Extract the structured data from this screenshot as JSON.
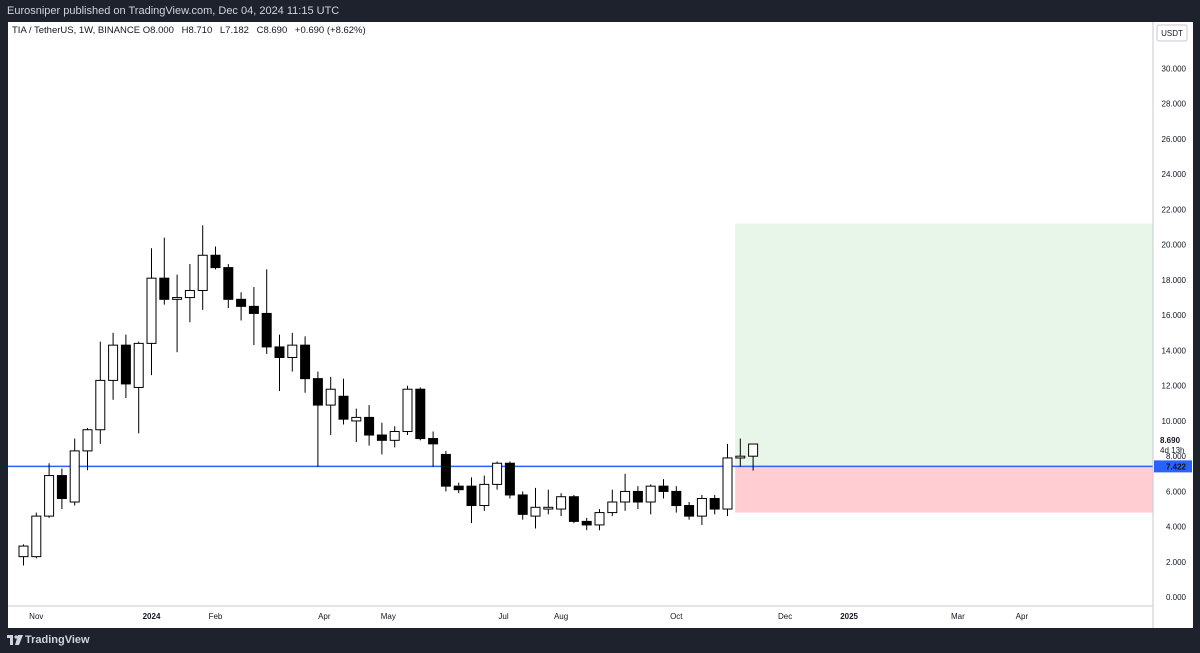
{
  "header": {
    "published_text": "Eurosniper published on TradingView.com, Dec 04, 2024 11:15 UTC"
  },
  "legend": {
    "symbol": "TIA / TetherUS, 1W, BINANCE",
    "open_label": "O",
    "open_value": "8.000",
    "high_label": "H",
    "high_value": "8.710",
    "low_label": "L",
    "low_value": "7.182",
    "close_label": "C",
    "close_value": "8.690",
    "change": "+0.690 (+8.62%)"
  },
  "footer": {
    "brand": "TradingView"
  },
  "colors": {
    "background": "#1e222d",
    "candle_body_up": "#ffffff",
    "candle_body_down": "#000000",
    "candle_outline": "#000000",
    "support_line": "#2962ff",
    "target_zone": "#e8f5e9",
    "stop_zone": "#ffcdd2"
  },
  "chart_data": {
    "type": "candlestick",
    "currency": "USDT",
    "ylim": [
      -0.5,
      31.5
    ],
    "y_ticks": [
      "0.000",
      "2.000",
      "4.000",
      "6.000",
      "8.000",
      "10.000",
      "12.000",
      "14.000",
      "16.000",
      "18.000",
      "20.000",
      "22.000",
      "24.000",
      "26.000",
      "28.000",
      "30.000"
    ],
    "x_labels": [
      {
        "text": "Nov",
        "index": 1,
        "bold": false
      },
      {
        "text": "2024",
        "index": 10,
        "bold": true
      },
      {
        "text": "Feb",
        "index": 15,
        "bold": false
      },
      {
        "text": "Apr",
        "index": 23.5,
        "bold": false
      },
      {
        "text": "May",
        "index": 28.5,
        "bold": false
      },
      {
        "text": "Jul",
        "index": 37.5,
        "bold": false
      },
      {
        "text": "Aug",
        "index": 42,
        "bold": false
      },
      {
        "text": "Oct",
        "index": 51,
        "bold": false
      },
      {
        "text": "Dec",
        "index": 59.5,
        "bold": false
      },
      {
        "text": "2025",
        "index": 64.5,
        "bold": true
      },
      {
        "text": "Mar",
        "index": 73,
        "bold": false
      },
      {
        "text": "Apr",
        "index": 78,
        "bold": false
      }
    ],
    "candles": [
      {
        "o": 2.3,
        "h": 3.0,
        "l": 1.8,
        "c": 2.9
      },
      {
        "o": 2.3,
        "h": 4.8,
        "l": 2.2,
        "c": 4.6
      },
      {
        "o": 4.6,
        "h": 7.6,
        "l": 4.5,
        "c": 6.9
      },
      {
        "o": 6.9,
        "h": 7.3,
        "l": 5.0,
        "c": 5.6
      },
      {
        "o": 5.4,
        "h": 9.0,
        "l": 5.2,
        "c": 8.3
      },
      {
        "o": 8.3,
        "h": 9.6,
        "l": 7.2,
        "c": 9.5
      },
      {
        "o": 9.5,
        "h": 14.5,
        "l": 8.7,
        "c": 12.3
      },
      {
        "o": 12.3,
        "h": 15.0,
        "l": 11.2,
        "c": 14.3
      },
      {
        "o": 14.3,
        "h": 14.9,
        "l": 11.3,
        "c": 12.1
      },
      {
        "o": 11.9,
        "h": 14.5,
        "l": 9.3,
        "c": 14.4
      },
      {
        "o": 14.4,
        "h": 19.8,
        "l": 12.6,
        "c": 18.1
      },
      {
        "o": 18.1,
        "h": 20.4,
        "l": 16.6,
        "c": 16.9
      },
      {
        "o": 16.9,
        "h": 18.3,
        "l": 13.9,
        "c": 17.0
      },
      {
        "o": 17.0,
        "h": 18.9,
        "l": 15.6,
        "c": 17.4
      },
      {
        "o": 17.4,
        "h": 21.1,
        "l": 16.3,
        "c": 19.4
      },
      {
        "o": 19.4,
        "h": 19.9,
        "l": 18.6,
        "c": 18.7
      },
      {
        "o": 18.7,
        "h": 18.9,
        "l": 16.4,
        "c": 16.9
      },
      {
        "o": 16.9,
        "h": 17.3,
        "l": 15.7,
        "c": 16.5
      },
      {
        "o": 16.5,
        "h": 17.6,
        "l": 14.3,
        "c": 16.1
      },
      {
        "o": 16.1,
        "h": 18.6,
        "l": 13.8,
        "c": 14.2
      },
      {
        "o": 14.2,
        "h": 14.9,
        "l": 11.7,
        "c": 13.6
      },
      {
        "o": 13.6,
        "h": 15.0,
        "l": 12.8,
        "c": 14.3
      },
      {
        "o": 14.3,
        "h": 14.8,
        "l": 11.6,
        "c": 12.4
      },
      {
        "o": 12.4,
        "h": 12.8,
        "l": 7.4,
        "c": 10.9
      },
      {
        "o": 10.9,
        "h": 12.5,
        "l": 9.2,
        "c": 11.8
      },
      {
        "o": 11.4,
        "h": 12.4,
        "l": 9.8,
        "c": 10.1
      },
      {
        "o": 10.0,
        "h": 10.7,
        "l": 8.8,
        "c": 10.2
      },
      {
        "o": 10.2,
        "h": 10.9,
        "l": 8.6,
        "c": 9.2
      },
      {
        "o": 9.2,
        "h": 9.9,
        "l": 8.1,
        "c": 8.9
      },
      {
        "o": 8.9,
        "h": 9.7,
        "l": 8.5,
        "c": 9.4
      },
      {
        "o": 9.4,
        "h": 12.0,
        "l": 9.2,
        "c": 11.8
      },
      {
        "o": 11.8,
        "h": 11.9,
        "l": 8.9,
        "c": 9.0
      },
      {
        "o": 9.0,
        "h": 9.4,
        "l": 7.4,
        "c": 8.7
      },
      {
        "o": 8.1,
        "h": 8.3,
        "l": 6.0,
        "c": 6.3
      },
      {
        "o": 6.3,
        "h": 6.5,
        "l": 5.9,
        "c": 6.1
      },
      {
        "o": 6.3,
        "h": 6.8,
        "l": 4.2,
        "c": 5.2
      },
      {
        "o": 5.2,
        "h": 6.9,
        "l": 4.9,
        "c": 6.4
      },
      {
        "o": 6.4,
        "h": 7.7,
        "l": 6.1,
        "c": 7.6
      },
      {
        "o": 7.6,
        "h": 7.7,
        "l": 5.6,
        "c": 5.8
      },
      {
        "o": 5.8,
        "h": 6.0,
        "l": 4.4,
        "c": 4.7
      },
      {
        "o": 4.6,
        "h": 6.2,
        "l": 3.9,
        "c": 5.1
      },
      {
        "o": 5.0,
        "h": 6.1,
        "l": 4.7,
        "c": 5.1
      },
      {
        "o": 5.0,
        "h": 5.9,
        "l": 4.6,
        "c": 5.7
      },
      {
        "o": 5.7,
        "h": 5.8,
        "l": 4.2,
        "c": 4.3
      },
      {
        "o": 4.3,
        "h": 4.5,
        "l": 3.8,
        "c": 4.1
      },
      {
        "o": 4.1,
        "h": 5.0,
        "l": 3.8,
        "c": 4.8
      },
      {
        "o": 4.8,
        "h": 6.1,
        "l": 4.6,
        "c": 5.4
      },
      {
        "o": 5.4,
        "h": 7.0,
        "l": 4.9,
        "c": 6.0
      },
      {
        "o": 6.0,
        "h": 6.3,
        "l": 5.0,
        "c": 5.4
      },
      {
        "o": 5.4,
        "h": 6.4,
        "l": 4.7,
        "c": 6.3
      },
      {
        "o": 6.3,
        "h": 6.7,
        "l": 5.6,
        "c": 6.0
      },
      {
        "o": 6.0,
        "h": 6.3,
        "l": 4.8,
        "c": 5.2
      },
      {
        "o": 5.2,
        "h": 5.4,
        "l": 4.4,
        "c": 4.6
      },
      {
        "o": 4.6,
        "h": 5.8,
        "l": 4.1,
        "c": 5.6
      },
      {
        "o": 5.6,
        "h": 5.8,
        "l": 4.7,
        "c": 5.0
      },
      {
        "o": 5.0,
        "h": 8.7,
        "l": 4.6,
        "c": 7.9
      },
      {
        "o": 7.9,
        "h": 9.0,
        "l": 7.4,
        "c": 8.0
      },
      {
        "o": 8.0,
        "h": 8.7,
        "l": 7.182,
        "c": 8.69
      }
    ],
    "support_line": {
      "value": 7.422,
      "label": "7.422"
    },
    "last_price": {
      "label": "8.690",
      "countdown": "4d 13h"
    },
    "target_zone": {
      "from_index": 55.6,
      "y_low": 7.422,
      "y_high": 21.2
    },
    "stop_zone": {
      "from_index": 55.6,
      "y_low": 4.8,
      "y_high": 7.422
    }
  }
}
